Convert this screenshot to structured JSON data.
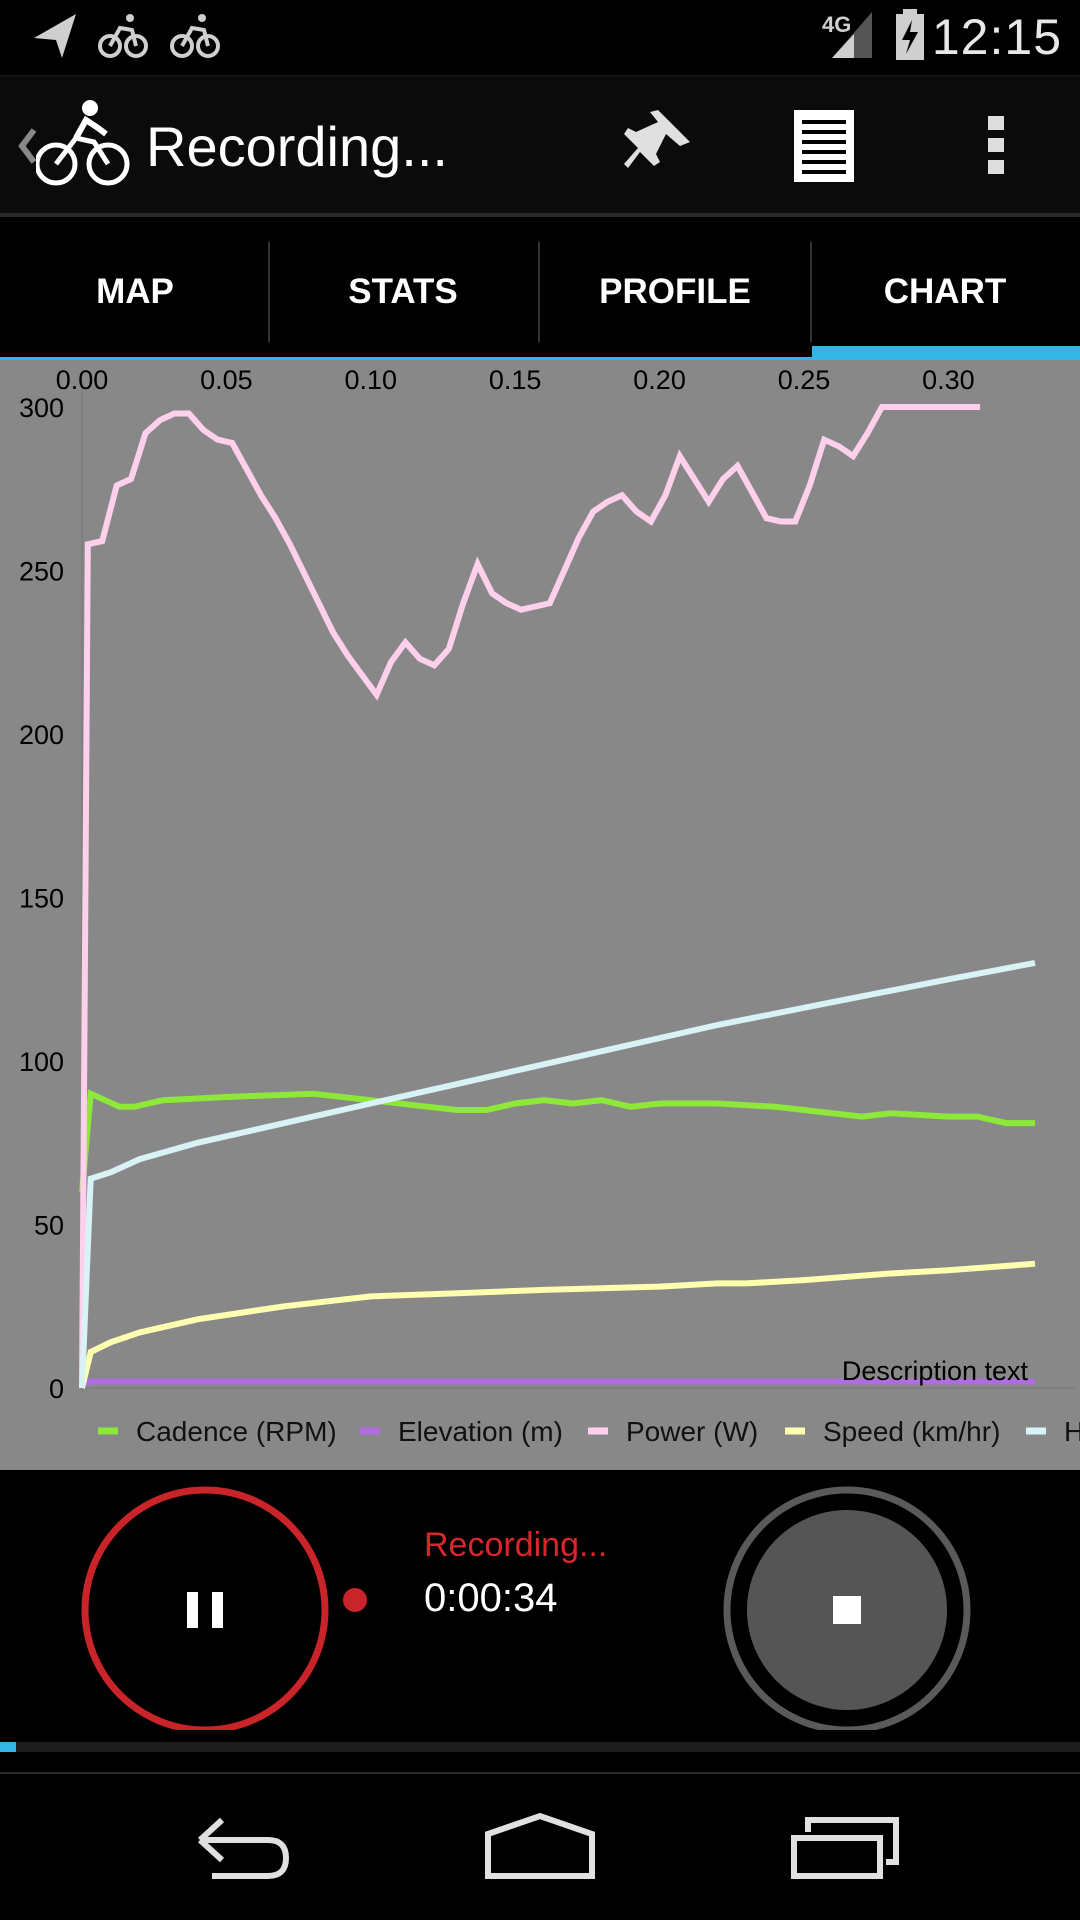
{
  "status_bar": {
    "time": "12:15",
    "network": "4G",
    "icons": [
      "navigation-arrow-icon",
      "bicycle-icon",
      "bicycle-icon",
      "signal-icon",
      "battery-charging-icon"
    ]
  },
  "action_bar": {
    "title": "Recording...",
    "icons": [
      "back-chevron-icon",
      "cyclist-app-icon",
      "pin-icon",
      "list-icon",
      "overflow-menu-icon"
    ]
  },
  "tabs": [
    {
      "label": "MAP",
      "selected": false
    },
    {
      "label": "STATS",
      "selected": false
    },
    {
      "label": "PROFILE",
      "selected": false
    },
    {
      "label": "CHART",
      "selected": true
    }
  ],
  "chart_data": {
    "type": "line",
    "x_ticks": [
      "0.00",
      "0.05",
      "0.10",
      "0.15",
      "0.20",
      "0.25",
      "0.30"
    ],
    "y_ticks": [
      "300",
      "250",
      "200",
      "150",
      "100",
      "50",
      "0"
    ],
    "xlim": [
      0,
      0.33
    ],
    "ylim": [
      0,
      300
    ],
    "description": "Description text",
    "background": "#888888",
    "series": [
      {
        "name": "Cadence (RPM)",
        "color": "#8ee83a",
        "x": [
          0.0,
          0.003,
          0.008,
          0.013,
          0.018,
          0.028,
          0.05,
          0.08,
          0.1,
          0.12,
          0.13,
          0.14,
          0.15,
          0.16,
          0.17,
          0.18,
          0.19,
          0.2,
          0.22,
          0.24,
          0.25,
          0.26,
          0.27,
          0.28,
          0.3,
          0.31,
          0.32,
          0.33
        ],
        "values": [
          60,
          90,
          88,
          86,
          86,
          88,
          89,
          90,
          88,
          86,
          85,
          85,
          87,
          88,
          87,
          88,
          86,
          87,
          87,
          86,
          85,
          84,
          83,
          84,
          83,
          83,
          81,
          81
        ]
      },
      {
        "name": "Elevation (m)",
        "color": "#b06de0",
        "x": [
          0.0,
          0.003,
          0.33
        ],
        "values": [
          1,
          2,
          2
        ]
      },
      {
        "name": "Power (W)",
        "color": "#ffd0ec",
        "x": [
          0.0,
          0.002,
          0.007,
          0.012,
          0.017,
          0.022,
          0.027,
          0.032,
          0.037,
          0.042,
          0.047,
          0.052,
          0.057,
          0.062,
          0.067,
          0.072,
          0.077,
          0.082,
          0.087,
          0.092,
          0.097,
          0.102,
          0.107,
          0.112,
          0.117,
          0.122,
          0.127,
          0.132,
          0.137,
          0.142,
          0.147,
          0.152,
          0.157,
          0.162,
          0.167,
          0.172,
          0.177,
          0.182,
          0.187,
          0.192,
          0.197,
          0.202,
          0.207,
          0.212,
          0.217,
          0.222,
          0.227,
          0.232,
          0.237,
          0.242,
          0.247,
          0.252,
          0.257,
          0.262,
          0.267,
          0.272,
          0.277,
          0.282,
          0.287,
          0.292,
          0.297,
          0.302,
          0.307,
          0.311
        ],
        "values": [
          0,
          258,
          259,
          276,
          278,
          292,
          296,
          298,
          298,
          293,
          290,
          289,
          281,
          273,
          266,
          258,
          249,
          240,
          231,
          224,
          218,
          212,
          222,
          228,
          223,
          221,
          226,
          240,
          252,
          243,
          240,
          238,
          239,
          240,
          250,
          260,
          268,
          271,
          273,
          268,
          265,
          273,
          285,
          278,
          271,
          278,
          282,
          274,
          266,
          265,
          265,
          276,
          290,
          288,
          285,
          292,
          300,
          300,
          300,
          300,
          300,
          300,
          300,
          300
        ]
      },
      {
        "name": "Speed (km/hr)",
        "color": "#ffffb0",
        "x": [
          0.0,
          0.003,
          0.01,
          0.02,
          0.04,
          0.07,
          0.1,
          0.13,
          0.16,
          0.2,
          0.22,
          0.23,
          0.25,
          0.28,
          0.3,
          0.33
        ],
        "values": [
          0,
          11,
          14,
          17,
          21,
          25,
          28,
          29,
          30,
          31,
          32,
          32,
          33,
          35,
          36,
          38
        ]
      },
      {
        "name": "Heart rate (BPM)",
        "color": "#d8f2f5",
        "x": [
          0.0,
          0.003,
          0.01,
          0.02,
          0.04,
          0.06,
          0.08,
          0.1,
          0.14,
          0.18,
          0.22,
          0.26,
          0.3,
          0.33
        ],
        "values": [
          0,
          64,
          66,
          70,
          75,
          79,
          83,
          87,
          95,
          103,
          111,
          118,
          125,
          130
        ]
      }
    ],
    "legend": {
      "position": "bottom",
      "entries": [
        "Cadence (RPM)",
        "Elevation (m)",
        "Power (W)",
        "Speed (km/hr)",
        "H"
      ]
    }
  },
  "recording": {
    "status": "Recording...",
    "elapsed": "0:00:34",
    "progress": 0.015,
    "colors": {
      "pause_ring": "#c8242a",
      "stop_ring": "#5a5a5a",
      "dot": "#c8242a",
      "accent": "#33b5e5"
    }
  },
  "nav_bar": {
    "icons": [
      "back-icon",
      "home-icon",
      "recent-apps-icon"
    ]
  }
}
